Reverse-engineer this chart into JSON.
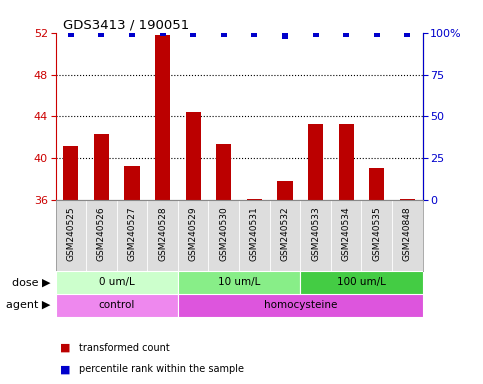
{
  "title": "GDS3413 / 190051",
  "samples": [
    "GSM240525",
    "GSM240526",
    "GSM240527",
    "GSM240528",
    "GSM240529",
    "GSM240530",
    "GSM240531",
    "GSM240532",
    "GSM240533",
    "GSM240534",
    "GSM240535",
    "GSM240848"
  ],
  "bar_values": [
    41.2,
    42.3,
    39.3,
    51.8,
    44.4,
    41.4,
    36.1,
    37.8,
    43.3,
    43.3,
    39.1,
    36.1
  ],
  "percentile_values": [
    99,
    99,
    99,
    100,
    99,
    99,
    99,
    98,
    99,
    99,
    99,
    99
  ],
  "bar_color": "#BB0000",
  "percentile_color": "#0000CC",
  "ylim_left": [
    36,
    52
  ],
  "ylim_right": [
    0,
    100
  ],
  "yticks_left": [
    36,
    40,
    44,
    48,
    52
  ],
  "yticks_right": [
    0,
    25,
    50,
    75,
    100
  ],
  "dose_groups": [
    {
      "label": "0 um/L",
      "start": 0,
      "end": 4,
      "color": "#CCFFCC"
    },
    {
      "label": "10 um/L",
      "start": 4,
      "end": 8,
      "color": "#88EE88"
    },
    {
      "label": "100 um/L",
      "start": 8,
      "end": 12,
      "color": "#44CC44"
    }
  ],
  "agent_groups": [
    {
      "label": "control",
      "start": 0,
      "end": 4,
      "color": "#EE88EE"
    },
    {
      "label": "homocysteine",
      "start": 4,
      "end": 12,
      "color": "#DD55DD"
    }
  ],
  "dose_label": "dose",
  "agent_label": "agent",
  "legend_bar_label": "transformed count",
  "legend_pct_label": "percentile rank within the sample",
  "background_color": "#FFFFFF",
  "left_tick_color": "#CC0000",
  "right_tick_color": "#0000CC",
  "grid_dotted_at": [
    40,
    44,
    48
  ],
  "bar_width": 0.5
}
